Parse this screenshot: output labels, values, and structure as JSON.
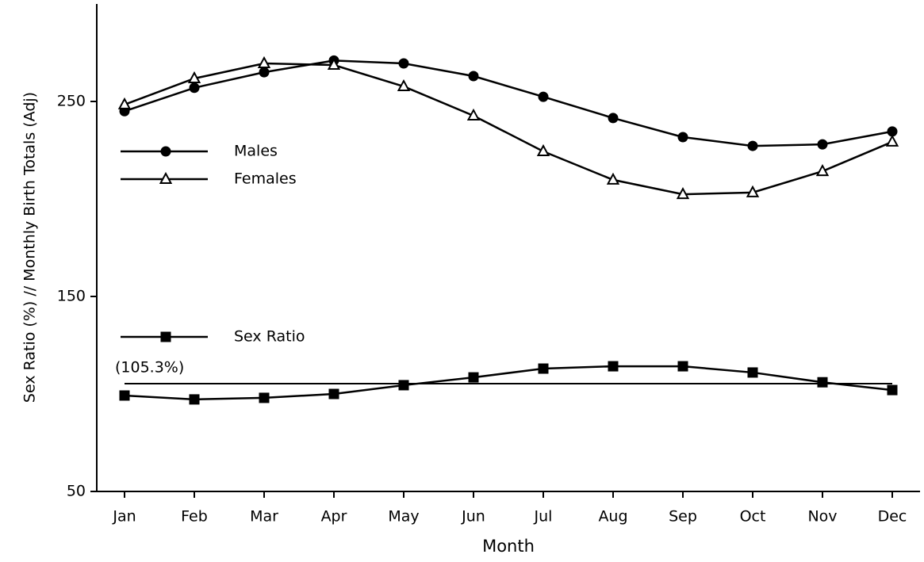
{
  "chart_data": {
    "type": "line",
    "y_label": "Sex Ratio (%)  //  Monthly  Birth Totals (Adj)",
    "x_label": "Month",
    "categories": [
      "Jan",
      "Feb",
      "Mar",
      "Apr",
      "May",
      "Jun",
      "Jul",
      "Aug",
      "Sep",
      "Oct",
      "Nov",
      "Dec"
    ],
    "series": [
      {
        "name": "Males",
        "color": "#000000",
        "marker": "circle",
        "values": [
          245,
          257,
          265,
          271,
          269.5,
          263,
          252.4,
          241.5,
          231.7,
          227.2,
          228,
          234.6
        ]
      },
      {
        "name": "Females",
        "color": "#000000",
        "marker": "triangle",
        "values": [
          248.4,
          261.8,
          269.5,
          268.7,
          257.7,
          242.7,
          224.4,
          209.8,
          202.4,
          203.3,
          214.2,
          229.3
        ]
      },
      {
        "name": "Sex Ratio",
        "color": "#000000",
        "marker": "square",
        "values": [
          99.2,
          97.2,
          98,
          100,
          104.5,
          108.5,
          113,
          114.2,
          114.2,
          111,
          106,
          102
        ]
      }
    ],
    "reference_line": {
      "value": 105.3,
      "label": "(105.3%)"
    },
    "ylim": [
      50,
      300
    ],
    "yticks": [
      50,
      150,
      250
    ],
    "grid": false
  }
}
